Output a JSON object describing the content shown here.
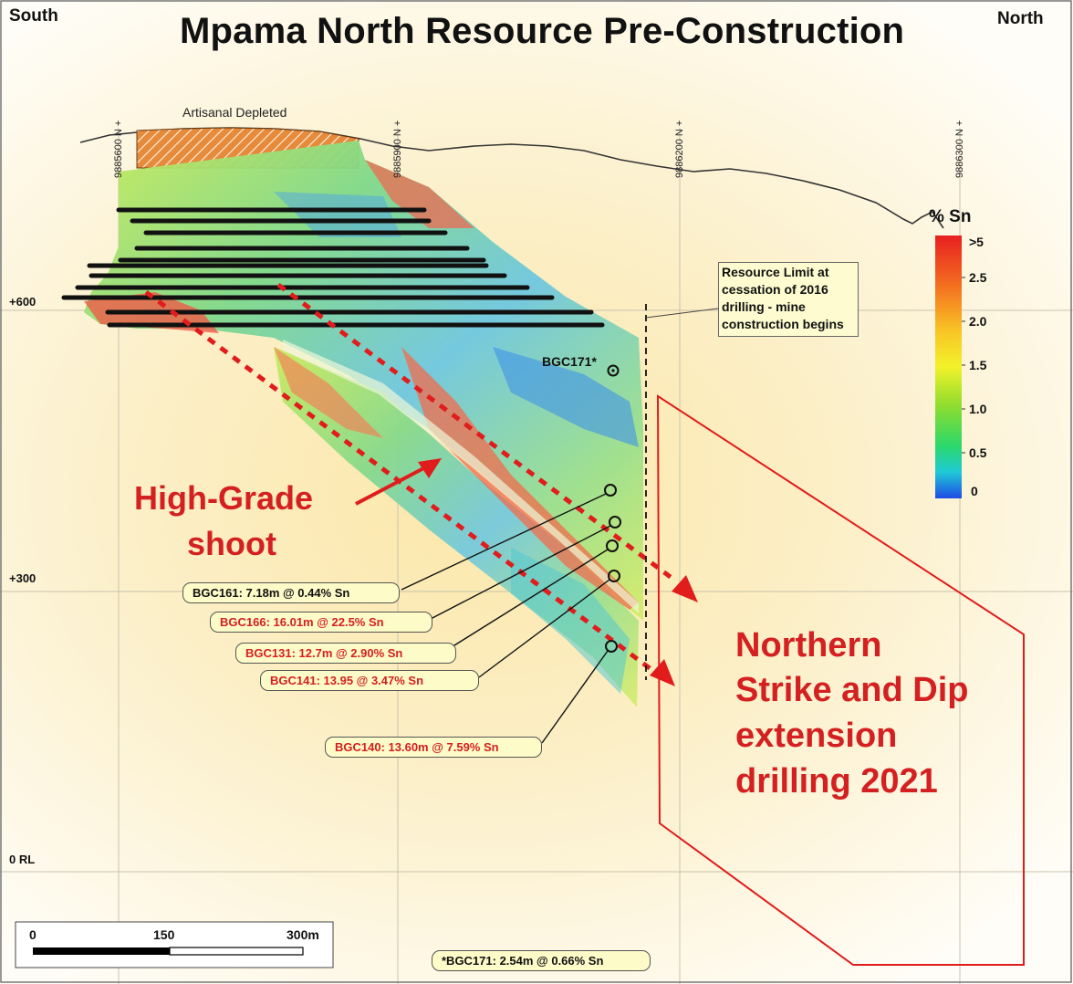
{
  "title": "Mpama North Resource Pre-Construction",
  "direction": {
    "left": "South",
    "right": "North"
  },
  "surface_label": "Artisanal Depleted",
  "northings": [
    "9885600 N +",
    "9885900 N +",
    "9886200 N +",
    "9886300 N +"
  ],
  "elevations": [
    "+600",
    "+300",
    "0 RL"
  ],
  "legend": {
    "title": "% Sn",
    "ticks": [
      ">5",
      "2.5",
      "2.0",
      "1.5",
      "1.0",
      "0.5",
      "0"
    ]
  },
  "resource_limit_note": "Resource Limit at cessation of 2016 drilling - mine construction begins",
  "high_grade_label": [
    "High-Grade",
    "shoot"
  ],
  "extension_label": [
    "Northern",
    "Strike and Dip",
    "extension",
    "drilling 2021"
  ],
  "holes": {
    "bgc171_marker": "BGC171*",
    "intercepts": [
      {
        "label": "BGC161: 7.18m @ 0.44% Sn",
        "color": "black"
      },
      {
        "label": "BGC166: 16.01m @ 22.5% Sn",
        "color": "red"
      },
      {
        "label": "BGC131: 12.7m @ 2.90% Sn",
        "color": "red"
      },
      {
        "label": "BGC141: 13.95 @ 3.47% Sn",
        "color": "red"
      },
      {
        "label": "BGC140: 13.60m @ 7.59% Sn",
        "color": "red"
      }
    ],
    "footnote": "*BGC171: 2.54m @ 0.66% Sn"
  },
  "scale_bar": {
    "ticks": [
      "0",
      "150",
      "300m"
    ]
  },
  "colors": {
    "accent_red": "#d42020",
    "title": "#111111"
  }
}
